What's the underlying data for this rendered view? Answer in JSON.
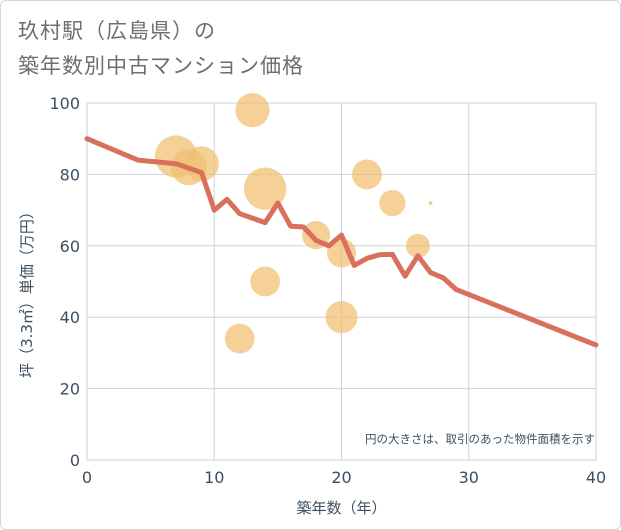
{
  "title": {
    "line1": "玖村駅（広島県）の",
    "line2": "築年数別中古マンション価格"
  },
  "colors": {
    "bubble": "#f2c074",
    "line": "#d9705c",
    "grid": "#c8d3df",
    "axis_text": "#3d4f60",
    "note_text": "#3d4f60"
  },
  "chart_data": {
    "type": "scatter",
    "title": "玖村駅（広島県）の 築年数別中古マンション価格",
    "xlabel": "築年数（年）",
    "ylabel": "坪（3.3㎡）単価（万円）",
    "xlim": [
      0,
      40
    ],
    "ylim": [
      0,
      100
    ],
    "xticks": [
      0,
      10,
      20,
      30,
      40
    ],
    "yticks": [
      0,
      20,
      40,
      60,
      80,
      100
    ],
    "grid": true,
    "note": "円の大きさは、取引のあった物件面積を示す",
    "bubbles": [
      {
        "x": 7,
        "y": 85,
        "size": 3.2
      },
      {
        "x": 8,
        "y": 82,
        "size": 2.0
      },
      {
        "x": 9,
        "y": 83,
        "size": 1.8
      },
      {
        "x": 13,
        "y": 98,
        "size": 1.7
      },
      {
        "x": 14,
        "y": 76,
        "size": 3.2
      },
      {
        "x": 22,
        "y": 80,
        "size": 1.1
      },
      {
        "x": 24,
        "y": 72,
        "size": 0.7
      },
      {
        "x": 27,
        "y": 72,
        "size": 0.2
      },
      {
        "x": 18,
        "y": 63,
        "size": 0.9
      },
      {
        "x": 20,
        "y": 58,
        "size": 1.0
      },
      {
        "x": 26,
        "y": 60,
        "size": 0.5
      },
      {
        "x": 14,
        "y": 50,
        "size": 1.1
      },
      {
        "x": 20,
        "y": 40,
        "size": 1.4
      },
      {
        "x": 12,
        "y": 34,
        "size": 1.1
      }
    ],
    "series": [
      {
        "name": "trend",
        "points": [
          [
            0,
            90
          ],
          [
            4,
            84
          ],
          [
            7,
            83
          ],
          [
            9,
            80.5
          ],
          [
            10,
            70
          ],
          [
            11,
            73
          ],
          [
            12,
            69
          ],
          [
            14,
            66.5
          ],
          [
            15,
            72
          ],
          [
            16,
            65.5
          ],
          [
            17,
            65.3
          ],
          [
            18,
            61.5
          ],
          [
            19,
            60
          ],
          [
            20,
            63
          ],
          [
            21,
            54.5
          ],
          [
            22,
            56.5
          ],
          [
            23,
            57.5
          ],
          [
            24,
            57.6
          ],
          [
            25,
            51.5
          ],
          [
            26,
            57.2
          ],
          [
            27,
            52.5
          ],
          [
            28,
            51
          ],
          [
            29,
            47.8
          ],
          [
            40,
            32.2
          ]
        ]
      }
    ]
  }
}
